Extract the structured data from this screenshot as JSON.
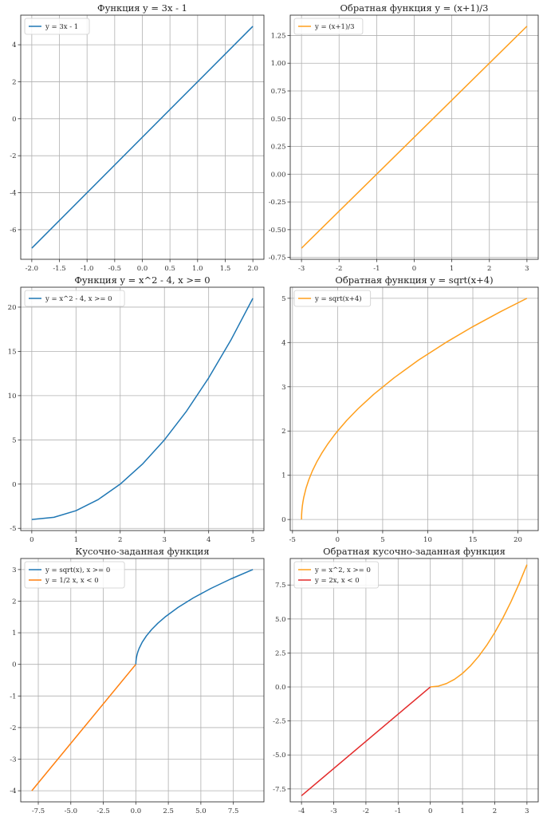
{
  "chart_data": [
    {
      "type": "line",
      "title": "Функция y = 3x - 1",
      "xlim": [
        -2.2,
        2.2
      ],
      "ylim": [
        -7.6,
        5.6
      ],
      "xticks": [
        -2.0,
        -1.5,
        -1.0,
        -0.5,
        0.0,
        0.5,
        1.0,
        1.5,
        2.0
      ],
      "xtick_labels": [
        "-2.0",
        "-1.5",
        "-1.0",
        "-0.5",
        "0.0",
        "0.5",
        "1.0",
        "1.5",
        "2.0"
      ],
      "yticks": [
        -6,
        -4,
        -2,
        0,
        2,
        4
      ],
      "ytick_labels": [
        "-6",
        "-4",
        "-2",
        "0",
        "2",
        "4"
      ],
      "grid": true,
      "legend_position": "top-left",
      "series": [
        {
          "name": "y = 3x - 1",
          "color": "#1f77b4",
          "x": [
            -2,
            2
          ],
          "y": [
            -7,
            5
          ]
        }
      ]
    },
    {
      "type": "line",
      "title": "Обратная функция y = (x+1)/3",
      "xlim": [
        -3.3,
        3.3
      ],
      "ylim": [
        -0.767,
        1.433
      ],
      "xticks": [
        -3,
        -2,
        -1,
        0,
        1,
        2,
        3
      ],
      "xtick_labels": [
        "-3",
        "-2",
        "-1",
        "0",
        "1",
        "2",
        "3"
      ],
      "yticks": [
        -0.75,
        -0.5,
        -0.25,
        0.0,
        0.25,
        0.5,
        0.75,
        1.0,
        1.25
      ],
      "ytick_labels": [
        "-0.75",
        "-0.50",
        "-0.25",
        "0.00",
        "0.25",
        "0.50",
        "0.75",
        "1.00",
        "1.25"
      ],
      "grid": true,
      "legend_position": "top-left",
      "series": [
        {
          "name": "y = (x+1)/3",
          "color": "#ff9f1c",
          "x": [
            -3,
            3
          ],
          "y": [
            -0.6667,
            1.3333
          ]
        }
      ]
    },
    {
      "type": "line",
      "title": "Функция y = x^2 - 4, x >= 0",
      "xlim": [
        -0.25,
        5.25
      ],
      "ylim": [
        -5.25,
        22.25
      ],
      "xticks": [
        0,
        1,
        2,
        3,
        4,
        5
      ],
      "xtick_labels": [
        "0",
        "1",
        "2",
        "3",
        "4",
        "5"
      ],
      "yticks": [
        -5,
        0,
        5,
        10,
        15,
        20
      ],
      "ytick_labels": [
        "-5",
        "0",
        "5",
        "10",
        "15",
        "20"
      ],
      "grid": true,
      "legend_position": "top-left",
      "series": [
        {
          "name": "y = x^2 - 4, x >= 0",
          "color": "#1f77b4",
          "x": [
            0,
            0.5,
            1,
            1.5,
            2,
            2.5,
            3,
            3.5,
            4,
            4.5,
            5
          ],
          "y": [
            -4,
            -3.75,
            -3,
            -1.75,
            0,
            2.25,
            5,
            8.25,
            12,
            16.25,
            21
          ]
        }
      ]
    },
    {
      "type": "line",
      "title": "Обратная функция y = sqrt(x+4)",
      "xlim": [
        -5.25,
        22.25
      ],
      "ylim": [
        -0.25,
        5.25
      ],
      "xticks": [
        -5,
        0,
        5,
        10,
        15,
        20
      ],
      "xtick_labels": [
        "-5",
        "0",
        "5",
        "10",
        "15",
        "20"
      ],
      "yticks": [
        0,
        1,
        2,
        3,
        4,
        5
      ],
      "ytick_labels": [
        "0",
        "1",
        "2",
        "3",
        "4",
        "5"
      ],
      "grid": true,
      "legend_position": "top-left",
      "series": [
        {
          "name": "y = sqrt(x+4)",
          "color": "#ff9f1c",
          "x": [
            -4,
            -3.99,
            -3.96,
            -3.91,
            -3.84,
            -3.75,
            -3.5,
            -3.19,
            -2.79,
            -2.31,
            -1.75,
            -1.11,
            -0.39,
            0,
            1,
            2.25,
            4,
            6.25,
            9,
            12,
            15,
            18,
            21
          ],
          "y": [
            0,
            0.1,
            0.2,
            0.3,
            0.4,
            0.5,
            0.707,
            0.9,
            1.1,
            1.3,
            1.5,
            1.7,
            1.9,
            2,
            2.236,
            2.5,
            2.828,
            3.2,
            3.606,
            4,
            4.359,
            4.69,
            5
          ]
        }
      ]
    },
    {
      "type": "line",
      "title": "Кусочно-заданная функция",
      "xlim": [
        -8.85,
        9.85
      ],
      "ylim": [
        -4.35,
        3.35
      ],
      "xticks": [
        -7.5,
        -5.0,
        -2.5,
        0.0,
        2.5,
        5.0,
        7.5
      ],
      "xtick_labels": [
        "-7.5",
        "-5.0",
        "-2.5",
        "0.0",
        "2.5",
        "5.0",
        "7.5"
      ],
      "yticks": [
        -4,
        -3,
        -2,
        -1,
        0,
        1,
        2,
        3
      ],
      "ytick_labels": [
        "-4",
        "-3",
        "-2",
        "-1",
        "0",
        "1",
        "2",
        "3"
      ],
      "grid": true,
      "legend_position": "top-left",
      "series": [
        {
          "name": "y = sqrt(x), x >= 0",
          "color": "#1f77b4",
          "x": [
            0,
            0.01,
            0.04,
            0.09,
            0.16,
            0.25,
            0.49,
            0.81,
            1.21,
            1.69,
            2.25,
            3.24,
            4.41,
            5.76,
            7.29,
            9
          ],
          "y": [
            0,
            0.1,
            0.2,
            0.3,
            0.4,
            0.5,
            0.7,
            0.9,
            1.1,
            1.3,
            1.5,
            1.8,
            2.1,
            2.4,
            2.7,
            3
          ]
        },
        {
          "name": "y = 1/2 x, x < 0",
          "color": "#ff7f0e",
          "x": [
            -8,
            0
          ],
          "y": [
            -4,
            0
          ]
        }
      ]
    },
    {
      "type": "line",
      "title": "Обратная кусочно-заданная функция",
      "xlim": [
        -4.35,
        3.35
      ],
      "ylim": [
        -8.45,
        9.45
      ],
      "xticks": [
        -4,
        -3,
        -2,
        -1,
        0,
        1,
        2,
        3
      ],
      "xtick_labels": [
        "-4",
        "-3",
        "-2",
        "-1",
        "0",
        "1",
        "2",
        "3"
      ],
      "yticks": [
        -7.5,
        -5.0,
        -2.5,
        0.0,
        2.5,
        5.0,
        7.5
      ],
      "ytick_labels": [
        "-7.5",
        "-5.0",
        "-2.5",
        "0.0",
        "2.5",
        "5.0",
        "7.5"
      ],
      "grid": true,
      "legend_position": "top-left",
      "series": [
        {
          "name": "y = x^2, x >= 0",
          "color": "#ff9f1c",
          "x": [
            0,
            0.25,
            0.5,
            0.75,
            1,
            1.25,
            1.5,
            1.75,
            2,
            2.25,
            2.5,
            2.75,
            3
          ],
          "y": [
            0,
            0.0625,
            0.25,
            0.5625,
            1,
            1.5625,
            2.25,
            3.0625,
            4,
            5.0625,
            6.25,
            7.5625,
            9
          ]
        },
        {
          "name": "y = 2x, x < 0",
          "color": "#e32b2b",
          "x": [
            -4,
            0
          ],
          "y": [
            -8,
            0
          ]
        }
      ]
    }
  ]
}
